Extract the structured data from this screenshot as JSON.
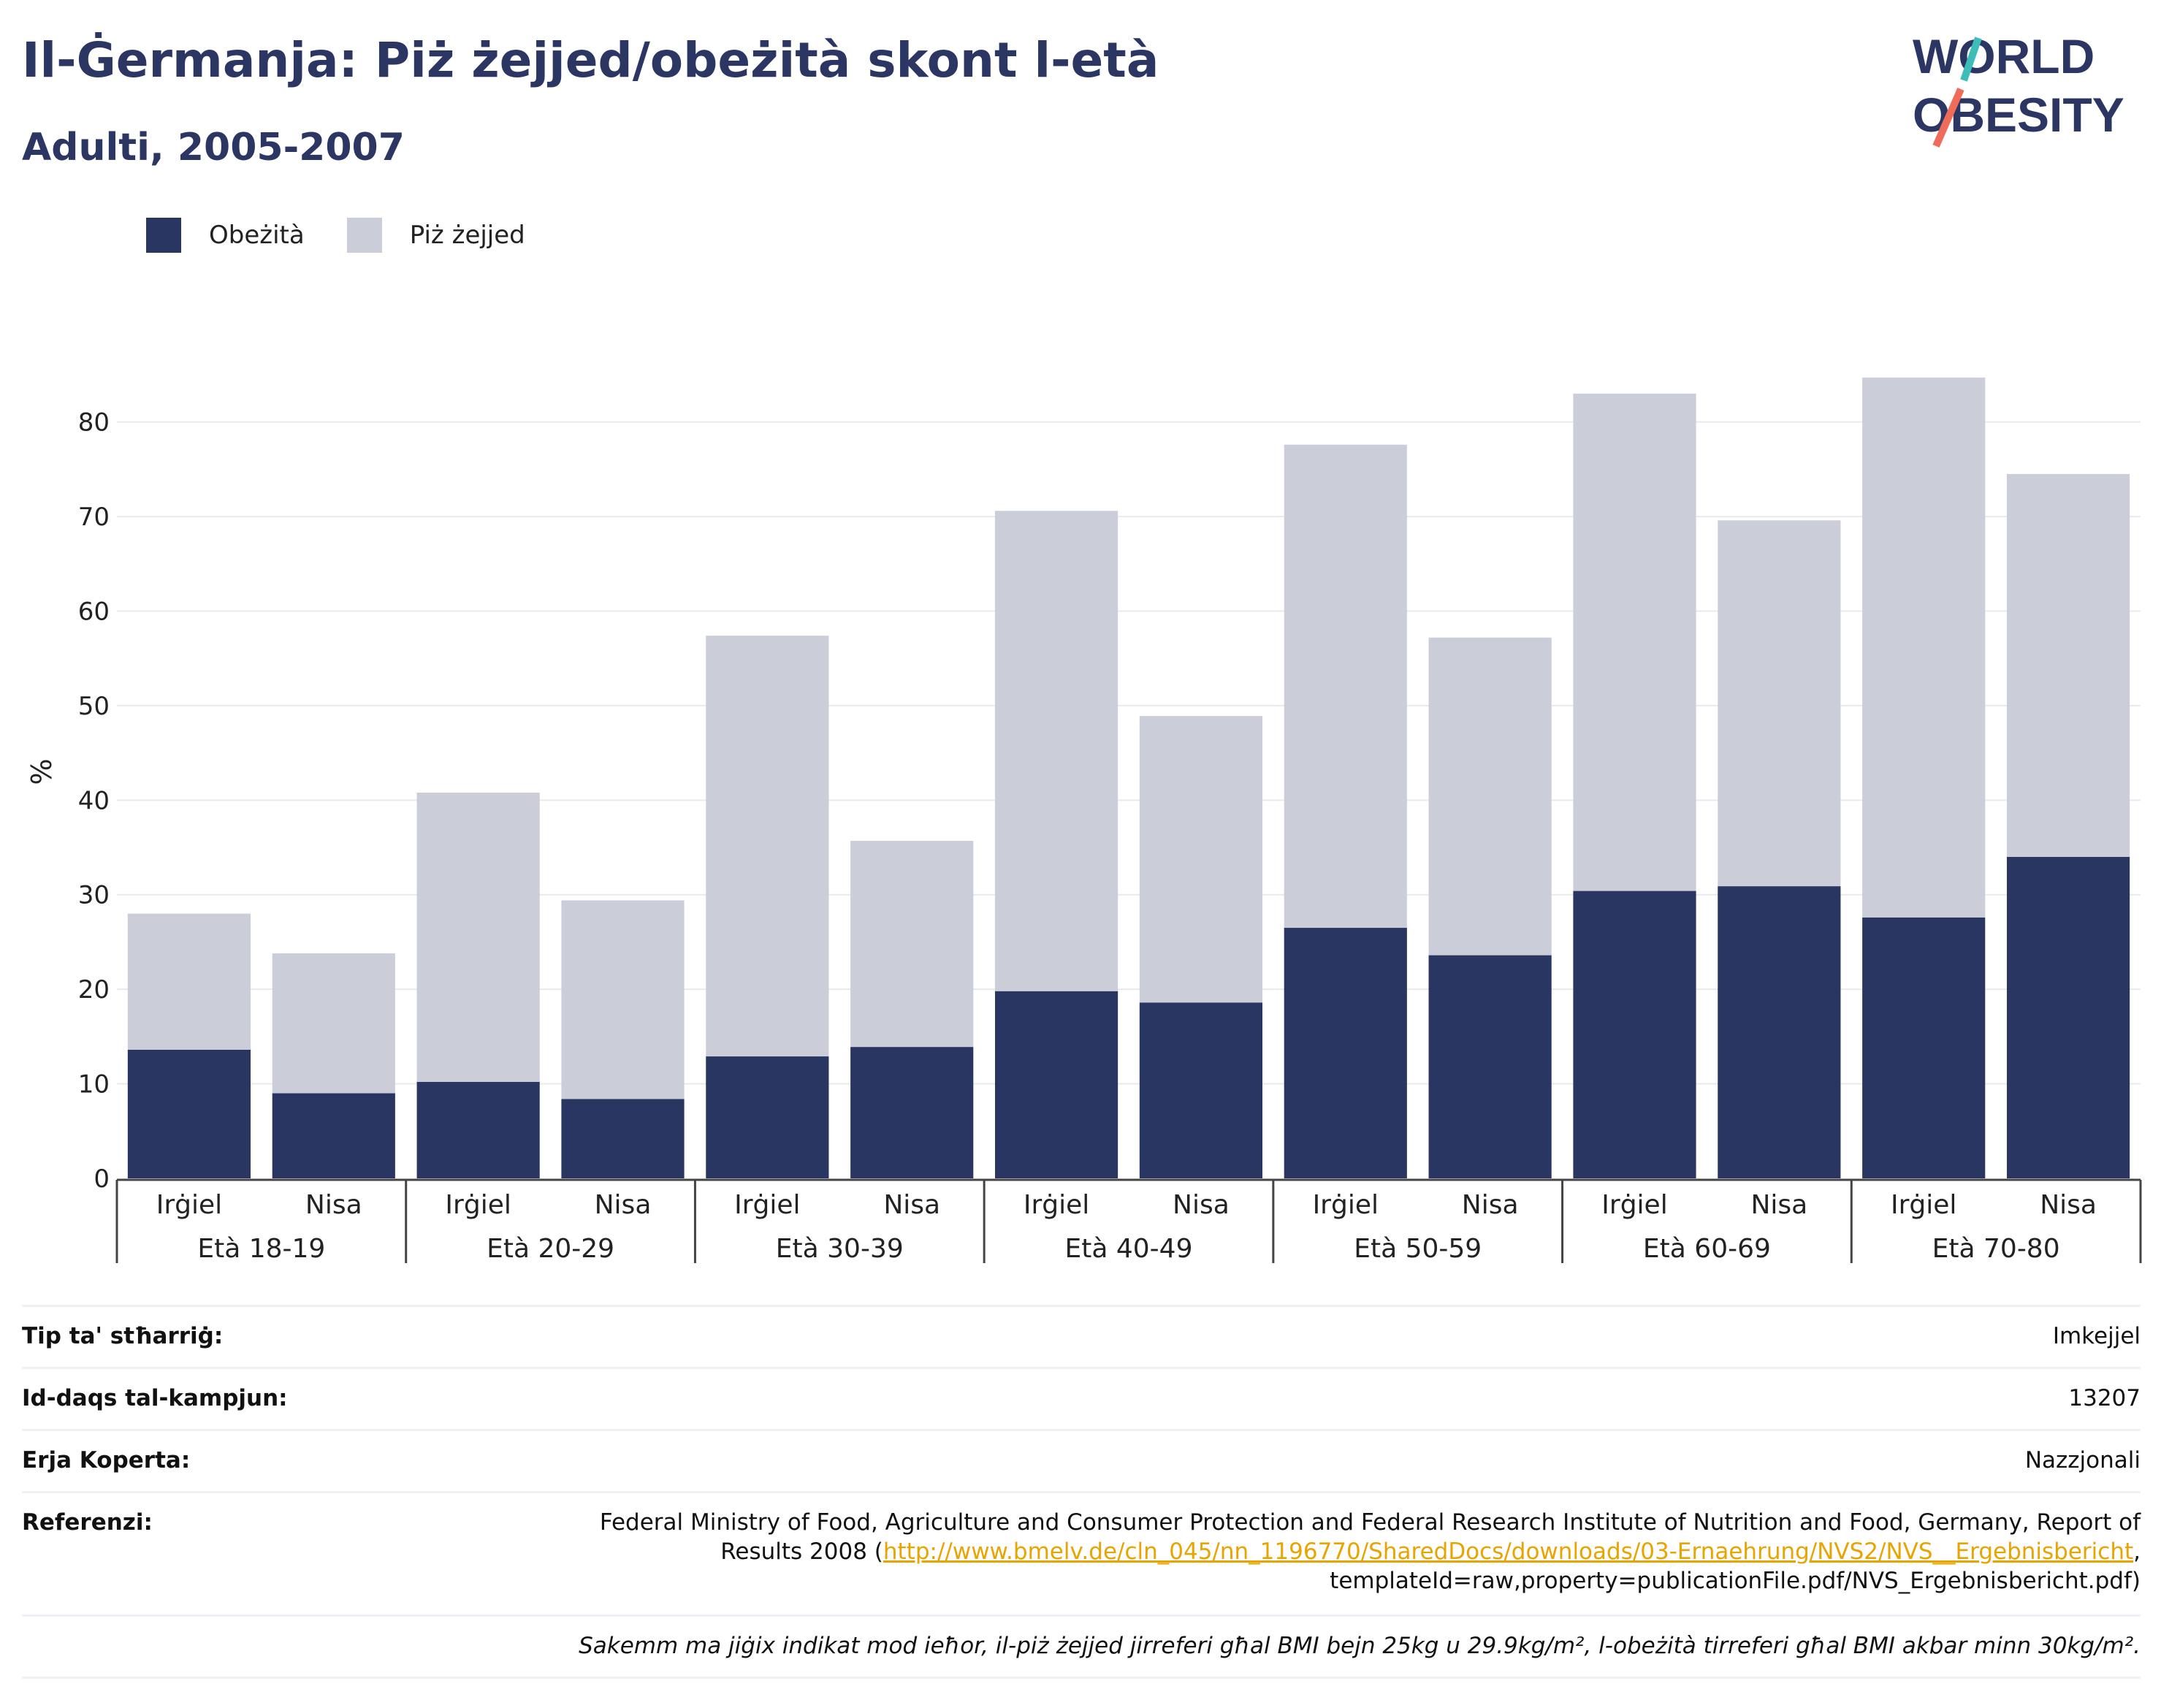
{
  "header": {
    "title": "Il-Ġermanja: Piż żejjed/obeżità skont l-età",
    "subtitle": "Adulti, 2005-2007"
  },
  "logo": {
    "line1": "WORLD",
    "line2": "OBESITY"
  },
  "legend": [
    {
      "label": "Obeżità",
      "color": "#2a3662"
    },
    {
      "label": "Piż żejjed",
      "color": "#cbcdd8"
    }
  ],
  "chart_data": {
    "type": "bar",
    "stacked": true,
    "ylabel": "%",
    "ylim": [
      0,
      86
    ],
    "yticks": [
      0,
      10,
      20,
      30,
      40,
      50,
      60,
      70,
      80
    ],
    "grid": true,
    "legend_position": "top-left",
    "groups": [
      "Età 18-19",
      "Età 20-29",
      "Età 30-39",
      "Età 40-49",
      "Età 50-59",
      "Età 60-69",
      "Età 70-80"
    ],
    "categories": [
      "Irġiel",
      "Nisa",
      "Irġiel",
      "Nisa",
      "Irġiel",
      "Nisa",
      "Irġiel",
      "Nisa",
      "Irġiel",
      "Nisa",
      "Irġiel",
      "Nisa",
      "Irġiel",
      "Nisa"
    ],
    "series": [
      {
        "name": "Obeżità",
        "color": "#2a3662",
        "values": [
          13.6,
          9.0,
          10.2,
          8.4,
          12.9,
          13.9,
          19.8,
          18.6,
          26.5,
          23.6,
          30.4,
          30.9,
          27.6,
          34.0
        ]
      },
      {
        "name": "Piż żejjed",
        "color": "#cbcdd8",
        "values": [
          14.4,
          14.8,
          30.6,
          21.0,
          44.5,
          21.8,
          50.8,
          30.3,
          51.1,
          33.6,
          52.6,
          38.7,
          57.1,
          40.5
        ]
      }
    ]
  },
  "info": {
    "survey_type_label": "Tip ta' stħarriġ:",
    "survey_type_value": "Imkejjel",
    "sample_size_label": "Id-daqs tal-kampjun:",
    "sample_size_value": "13207",
    "coverage_label": "Erja Koperta:",
    "coverage_value": "Nazzjonali",
    "references_label": "Referenzi:",
    "references_text_1": "Federal Ministry of Food, Agriculture and Consumer Protection and Federal Research Institute of Nutrition and Food, Germany, Report of Results 2008 (",
    "references_link": "http://www.bmelv.de/cln_045/nn_1196770/SharedDocs/downloads/03-Ernaehrung/NVS2/NVS__Ergebnisbericht",
    "references_text_2": ", templateId=raw,property=publicationFile.pdf/NVS_Ergebnisbericht.pdf)",
    "note": "Sakemm ma jiġix indikat mod ieħor, il-piż żejjed jirreferi għal BMI bejn 25kg u 29.9kg/m², l-obeżità tirreferi għal BMI akbar minn 30kg/m²."
  }
}
